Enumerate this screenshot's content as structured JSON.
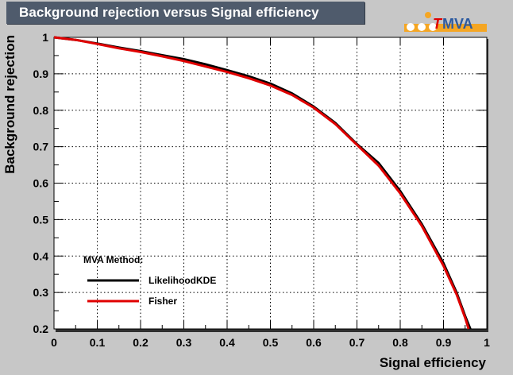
{
  "title": "Background rejection versus Signal efficiency",
  "logo": {
    "prefix": "T",
    "text": "MVA"
  },
  "chart_data": {
    "type": "line",
    "xlabel": "Signal efficiency",
    "ylabel": "Background rejection",
    "xlim": [
      0,
      1
    ],
    "ylim": [
      0.2,
      1
    ],
    "grid": true,
    "x_ticks": [
      0,
      0.1,
      0.2,
      0.3,
      0.4,
      0.5,
      0.6,
      0.7,
      0.8,
      0.9,
      1
    ],
    "y_ticks": [
      0.2,
      0.3,
      0.4,
      0.5,
      0.6,
      0.7,
      0.8,
      0.9,
      1
    ],
    "legend_title": "MVA Method:",
    "legend_position": "bottom-left",
    "series": [
      {
        "name": "LikelihoodKDE",
        "color": "#000000",
        "x": [
          0,
          0.05,
          0.1,
          0.15,
          0.2,
          0.25,
          0.3,
          0.35,
          0.4,
          0.45,
          0.5,
          0.55,
          0.6,
          0.65,
          0.7,
          0.75,
          0.8,
          0.85,
          0.9,
          0.93,
          0.95,
          0.962
        ],
        "y": [
          1.0,
          0.993,
          0.983,
          0.972,
          0.962,
          0.951,
          0.94,
          0.926,
          0.91,
          0.893,
          0.873,
          0.846,
          0.81,
          0.765,
          0.707,
          0.655,
          0.578,
          0.487,
          0.38,
          0.3,
          0.235,
          0.2
        ]
      },
      {
        "name": "Fisher",
        "color": "#e00000",
        "x": [
          0,
          0.05,
          0.1,
          0.15,
          0.2,
          0.25,
          0.3,
          0.35,
          0.4,
          0.45,
          0.5,
          0.55,
          0.6,
          0.65,
          0.7,
          0.75,
          0.8,
          0.85,
          0.9,
          0.93,
          0.95,
          0.958
        ],
        "y": [
          1.0,
          0.993,
          0.982,
          0.97,
          0.96,
          0.948,
          0.935,
          0.92,
          0.905,
          0.888,
          0.868,
          0.842,
          0.807,
          0.762,
          0.705,
          0.648,
          0.572,
          0.482,
          0.373,
          0.295,
          0.23,
          0.2
        ]
      }
    ]
  }
}
